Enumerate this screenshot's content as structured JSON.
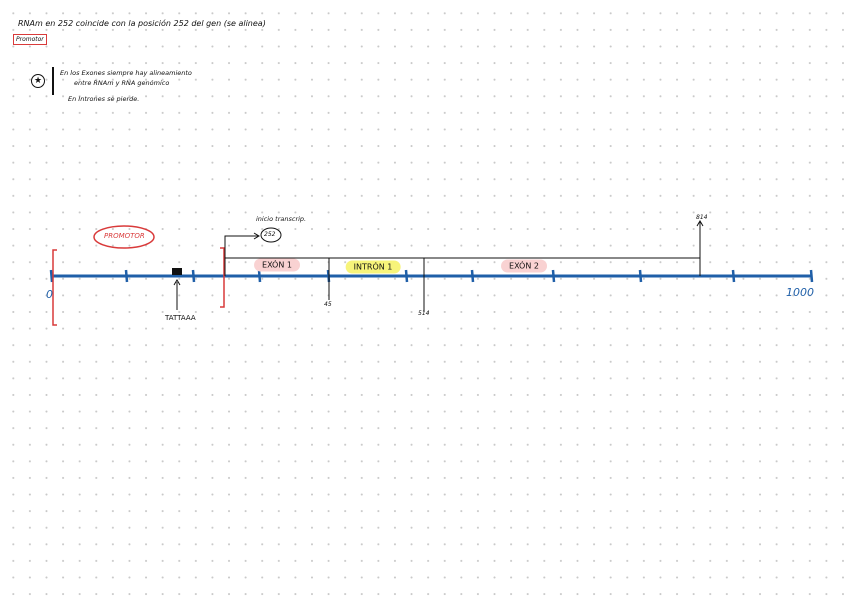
{
  "notes": {
    "line1": "RNAm en 252 coincide con la posición 252 del gen (se alinea)",
    "boxed": "Promotor",
    "star_note": [
      "En los Exones siempre hay alineamiento",
      "entre RNAm y RNA genómico",
      "En Intrones se pierde."
    ]
  },
  "diagram": {
    "promotor_label": "PROMOTOR",
    "start_label": "inicio transcrip.",
    "start_position": "252",
    "exon1": "EXÓN 1",
    "intron1": "INTRÓN 1",
    "exon2": "EXÓN 2",
    "mark1": "45",
    "mark2": "514",
    "mark3": "814",
    "tata": "TATTAAA",
    "axis_start": "0",
    "axis_end": "1000"
  },
  "colors": {
    "axis": "#1f5fa8",
    "promotor": "#d93a3a",
    "exon": "#f9d2d2",
    "intron": "#f7f47a"
  }
}
